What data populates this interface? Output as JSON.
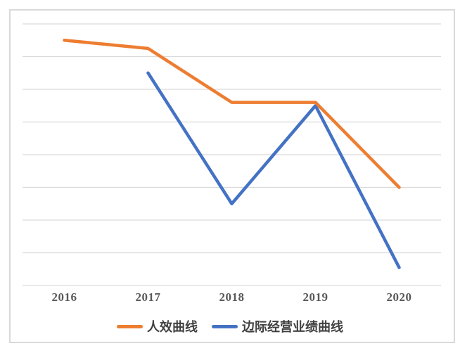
{
  "chart_data": {
    "type": "line",
    "categories": [
      "2016",
      "2017",
      "2018",
      "2019",
      "2020"
    ],
    "series": [
      {
        "name": "人效曲线",
        "color": "#ED7D31",
        "values": [
          7.5,
          7.25,
          5.6,
          5.6,
          3.0
        ]
      },
      {
        "name": "边际经营业绩曲线",
        "color": "#4472C4",
        "values": [
          null,
          6.5,
          2.5,
          5.5,
          0.55
        ]
      }
    ],
    "title": "",
    "xlabel": "",
    "ylabel": "",
    "ylim": [
      0,
      8
    ],
    "gridline_step": 1,
    "grid": true,
    "y_axis_tick_labels": [],
    "legend_position": "bottom"
  },
  "colors": {
    "background": "#FFFFFF",
    "frame_border": "#D9D9D9",
    "gridline": "#D9D9D9",
    "axis_label": "#595959",
    "legend_text": "#404040"
  }
}
